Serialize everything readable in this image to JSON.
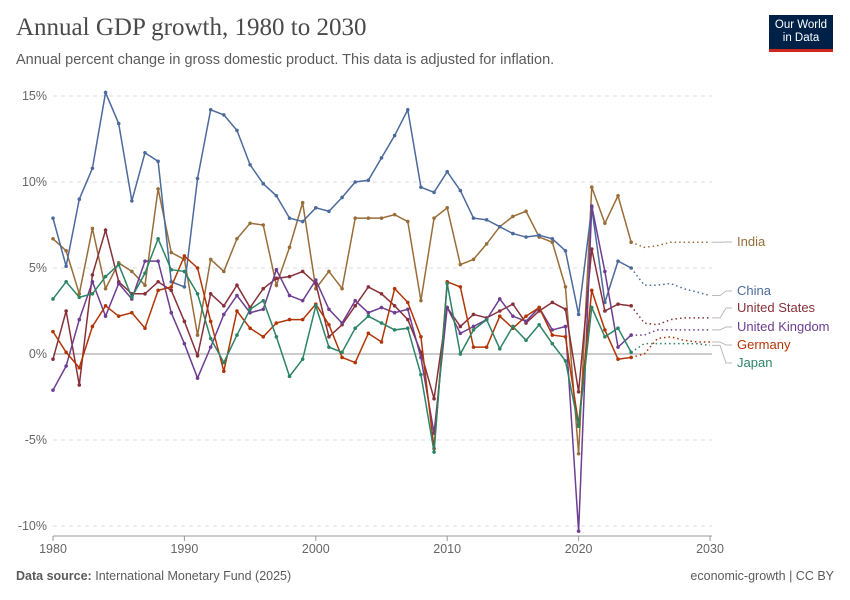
{
  "header": {
    "title": "Annual GDP growth, 1980 to 2030",
    "subtitle": "Annual percent change in gross domestic product. This data is adjusted for inflation.",
    "logo": "Our World in Data"
  },
  "footer": {
    "source_label": "Data source:",
    "source": "International Monetary Fund (2025)",
    "right": "economic-growth | CC BY"
  },
  "chart_data": {
    "type": "line",
    "title": "Annual GDP growth, 1980 to 2030",
    "xlim": [
      1980,
      2030
    ],
    "ylim": [
      -10,
      15
    ],
    "x_ticks": [
      1980,
      1990,
      2000,
      2010,
      2020,
      2030
    ],
    "y_ticks": [
      {
        "v": 15,
        "label": "15%"
      },
      {
        "v": 10,
        "label": "10%"
      },
      {
        "v": 5,
        "label": "5%"
      },
      {
        "v": 0,
        "label": "0%"
      },
      {
        "v": -5,
        "label": "-5%"
      },
      {
        "v": -10,
        "label": "-10%"
      }
    ],
    "grid": "horizontal dashed",
    "observed_start": 1980,
    "observed_end": 2024,
    "projection_end": 2030,
    "series": [
      {
        "name": "India",
        "color": "#996D39",
        "values": [
          6.7,
          6.0,
          3.5,
          7.3,
          3.8,
          5.3,
          4.8,
          4.0,
          9.6,
          5.9,
          5.5,
          1.1,
          5.5,
          4.8,
          6.7,
          7.6,
          7.5,
          4.0,
          6.2,
          8.8,
          3.8,
          4.8,
          3.8,
          7.9,
          7.9,
          7.9,
          8.1,
          7.7,
          3.1,
          7.9,
          8.5,
          5.2,
          5.5,
          6.4,
          7.4,
          8.0,
          8.3,
          6.8,
          6.5,
          3.9,
          -5.8,
          9.7,
          7.6,
          9.2,
          6.5,
          6.2,
          6.3,
          6.5,
          6.5,
          6.5,
          6.5
        ]
      },
      {
        "name": "China",
        "color": "#4C6A9C",
        "values": [
          7.9,
          5.1,
          9.0,
          10.8,
          15.2,
          13.4,
          8.9,
          11.7,
          11.2,
          4.2,
          3.9,
          10.2,
          14.2,
          13.9,
          13.0,
          11.0,
          9.9,
          9.2,
          7.9,
          7.7,
          8.5,
          8.3,
          9.1,
          10.0,
          10.1,
          11.4,
          12.7,
          14.2,
          9.7,
          9.4,
          10.6,
          9.5,
          7.9,
          7.8,
          7.4,
          7.0,
          6.8,
          6.9,
          6.7,
          6.0,
          2.3,
          8.5,
          3.0,
          5.4,
          5.0,
          4.0,
          4.0,
          4.1,
          3.8,
          3.6,
          3.4
        ]
      },
      {
        "name": "United States",
        "color": "#883039",
        "values": [
          -0.3,
          2.5,
          -1.8,
          4.6,
          7.2,
          4.2,
          3.5,
          3.5,
          4.2,
          3.7,
          1.9,
          -0.1,
          3.5,
          2.8,
          4.0,
          2.7,
          3.8,
          4.4,
          4.5,
          4.8,
          4.1,
          1.0,
          1.7,
          2.8,
          3.9,
          3.5,
          2.8,
          2.0,
          0.1,
          -2.6,
          2.7,
          1.6,
          2.3,
          2.1,
          2.5,
          2.9,
          1.8,
          2.5,
          3.0,
          2.6,
          -2.2,
          6.1,
          2.5,
          2.9,
          2.8,
          1.8,
          1.7,
          2.0,
          2.1,
          2.1,
          2.1
        ]
      },
      {
        "name": "United Kingdom",
        "color": "#6D3E91",
        "values": [
          -2.1,
          -0.7,
          2.0,
          4.2,
          2.2,
          4.1,
          3.2,
          5.4,
          5.4,
          2.4,
          0.6,
          -1.4,
          0.4,
          2.3,
          3.4,
          2.4,
          2.6,
          4.9,
          3.4,
          3.1,
          4.3,
          2.6,
          1.8,
          3.1,
          2.4,
          2.7,
          2.4,
          2.6,
          -0.2,
          -4.6,
          2.7,
          1.2,
          1.6,
          2.0,
          3.2,
          2.2,
          1.9,
          2.7,
          1.4,
          1.6,
          -10.3,
          8.6,
          4.8,
          0.4,
          1.1,
          1.1,
          1.4,
          1.4,
          1.4,
          1.4,
          1.4
        ]
      },
      {
        "name": "Germany",
        "color": "#B13507",
        "values": [
          1.3,
          0.1,
          -0.8,
          1.6,
          2.8,
          2.2,
          2.4,
          1.5,
          3.7,
          3.9,
          5.7,
          5.0,
          1.9,
          -1.0,
          2.5,
          1.5,
          1.0,
          1.8,
          2.0,
          2.0,
          2.9,
          1.7,
          -0.2,
          -0.5,
          1.2,
          0.7,
          3.8,
          3.0,
          1.0,
          -5.5,
          4.2,
          3.9,
          0.4,
          0.4,
          2.2,
          1.5,
          2.2,
          2.7,
          1.1,
          1.0,
          -4.1,
          3.7,
          1.4,
          -0.3,
          -0.2,
          0.0,
          0.9,
          1.0,
          0.8,
          0.7,
          0.7
        ]
      },
      {
        "name": "Japan",
        "color": "#2C8465",
        "values": [
          3.2,
          4.2,
          3.3,
          3.5,
          4.5,
          5.2,
          3.3,
          4.7,
          6.7,
          4.9,
          4.8,
          3.5,
          0.9,
          -0.5,
          1.1,
          2.6,
          3.1,
          1.0,
          -1.3,
          -0.3,
          2.8,
          0.4,
          0.1,
          1.5,
          2.2,
          1.8,
          1.4,
          1.5,
          -1.2,
          -5.7,
          4.1,
          0.0,
          1.4,
          2.0,
          0.3,
          1.6,
          0.8,
          1.7,
          0.6,
          -0.4,
          -4.2,
          2.7,
          1.0,
          1.5,
          0.1,
          0.6,
          0.6,
          0.6,
          0.6,
          0.6,
          0.5
        ]
      }
    ]
  }
}
